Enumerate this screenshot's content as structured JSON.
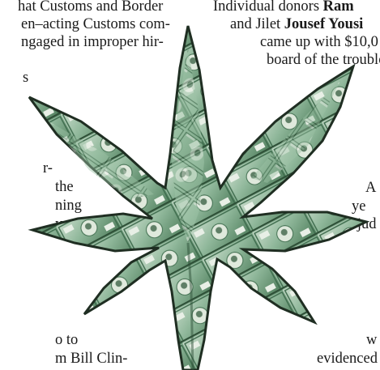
{
  "left_column": [
    "hat Customs and Border",
    "en–acting Customs com-",
    "ngaged in improper hir-",
    "s",
    "r-",
    "the",
    "ning",
    "ycoon",
    "o to",
    "m Bill Clin-"
  ],
  "right_column": {
    "line1": {
      "prefix": "Individual donors ",
      "bold": "Ram"
    },
    "line2": {
      "prefix": "and Jilet ",
      "bold": "Jousef Yousi"
    },
    "line3": "came up with $10,0",
    "line4": "board of the trouble",
    "line5": "A",
    "line6": "ye",
    "line7": "a jud",
    "line8": "w",
    "line9": "evidenced"
  },
  "artwork": {
    "subject": "cannabis-leaf-made-of-100-dollar-bills",
    "colors": {
      "bill_green": "#8fb79a",
      "bill_dark": "#3d6b4c",
      "outline": "#1f2e22",
      "paper": "#e8efe6"
    },
    "bill_denomination": "100"
  }
}
